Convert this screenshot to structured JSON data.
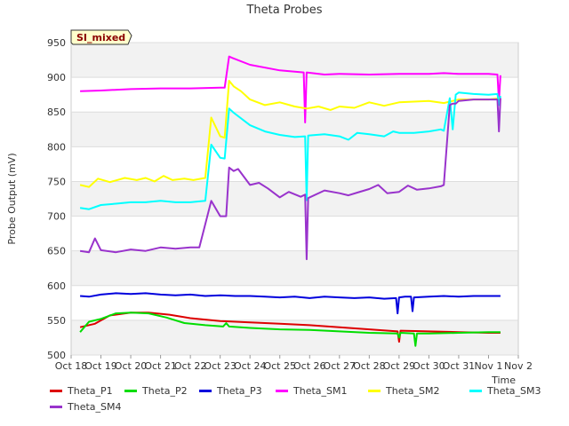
{
  "chart_data": {
    "type": "line",
    "title": "Theta Probes",
    "xlabel": "Time",
    "ylabel": "Probe Output (mV)",
    "badge": "SI_mixed",
    "ylim": [
      500,
      950
    ],
    "xlim": [
      0,
      15
    ],
    "y_ticks": [
      500,
      550,
      600,
      650,
      700,
      750,
      800,
      850,
      900,
      950
    ],
    "x_ticks": [
      {
        "v": 0,
        "label": "Oct 18"
      },
      {
        "v": 1,
        "label": "Oct 19"
      },
      {
        "v": 2,
        "label": "Oct 20"
      },
      {
        "v": 3,
        "label": "Oct 21"
      },
      {
        "v": 4,
        "label": "Oct 22"
      },
      {
        "v": 5,
        "label": "Oct 23"
      },
      {
        "v": 6,
        "label": "Oct 24"
      },
      {
        "v": 7,
        "label": "Oct 25"
      },
      {
        "v": 8,
        "label": "Oct 26"
      },
      {
        "v": 9,
        "label": "Oct 27"
      },
      {
        "v": 10,
        "label": "Oct 28"
      },
      {
        "v": 11,
        "label": "Oct 29"
      },
      {
        "v": 12,
        "label": "Oct 30"
      },
      {
        "v": 13,
        "label": "Oct 31"
      },
      {
        "v": 14,
        "label": "Nov 1"
      },
      {
        "v": 15,
        "label": "Nov 2"
      }
    ],
    "series": [
      {
        "name": "Theta_P1",
        "color": "#dd0000",
        "x": [
          0.3,
          0.8,
          1.3,
          2.0,
          2.6,
          3.3,
          4.0,
          5.0,
          6.0,
          7.0,
          8.0,
          9.0,
          10.0,
          10.95,
          11.0,
          11.05,
          12.0,
          13.0,
          14.0,
          14.4
        ],
        "y": [
          540,
          545,
          557,
          561,
          561,
          558,
          553,
          549,
          547,
          545,
          543,
          540,
          537,
          534,
          519,
          535,
          534,
          533,
          532,
          532
        ]
      },
      {
        "name": "Theta_P2",
        "color": "#00dd00",
        "x": [
          0.3,
          0.6,
          1.0,
          1.5,
          2.0,
          2.6,
          3.2,
          3.8,
          4.5,
          5.1,
          5.2,
          5.3,
          6.0,
          7.0,
          8.0,
          9.0,
          10.0,
          10.95,
          11.0,
          11.05,
          11.5,
          11.55,
          11.6,
          12.0,
          13.0,
          14.0,
          14.4
        ],
        "y": [
          533,
          548,
          552,
          560,
          561,
          560,
          554,
          546,
          543,
          541,
          546,
          541,
          539,
          537,
          536,
          534,
          532,
          531,
          525,
          532,
          531,
          513,
          531,
          531,
          532,
          533,
          533
        ]
      },
      {
        "name": "Theta_P3",
        "color": "#0000dd",
        "x": [
          0.3,
          0.6,
          1.0,
          1.5,
          2.0,
          2.5,
          3.0,
          3.5,
          4.0,
          4.5,
          5.0,
          5.5,
          6.0,
          6.5,
          7.0,
          7.5,
          8.0,
          8.5,
          9.0,
          9.5,
          10.0,
          10.5,
          10.9,
          10.95,
          11.0,
          11.2,
          11.4,
          11.45,
          11.5,
          12.0,
          12.5,
          13.0,
          13.5,
          14.0,
          14.4
        ],
        "y": [
          585,
          584,
          587,
          589,
          588,
          589,
          587,
          586,
          587,
          585,
          586,
          585,
          585,
          584,
          583,
          584,
          582,
          584,
          583,
          582,
          583,
          581,
          582,
          560,
          583,
          584,
          584,
          563,
          583,
          584,
          585,
          584,
          585,
          585,
          585
        ]
      },
      {
        "name": "Theta_SM1",
        "color": "#ff00ff",
        "x": [
          0.3,
          1.0,
          2.0,
          3.0,
          4.0,
          5.0,
          5.15,
          5.3,
          5.4,
          6.0,
          7.0,
          7.8,
          7.85,
          7.9,
          8.5,
          9.0,
          10.0,
          11.0,
          12.0,
          12.5,
          13.0,
          13.5,
          14.0,
          14.3,
          14.35,
          14.4
        ],
        "y": [
          880,
          881,
          883,
          884,
          884,
          885,
          885,
          930,
          928,
          918,
          910,
          907,
          835,
          907,
          904,
          905,
          904,
          905,
          905,
          906,
          905,
          905,
          905,
          904,
          865,
          903
        ]
      },
      {
        "name": "Theta_SM2",
        "color": "#ffff00",
        "x": [
          0.3,
          0.6,
          0.9,
          1.3,
          1.8,
          2.2,
          2.5,
          2.8,
          3.1,
          3.4,
          3.8,
          4.1,
          4.5,
          4.7,
          5.0,
          5.15,
          5.3,
          5.45,
          5.7,
          6.0,
          6.5,
          7.0,
          7.5,
          7.9,
          8.3,
          8.7,
          9.0,
          9.5,
          10.0,
          10.5,
          11.0,
          11.5,
          12.0,
          12.5,
          13.0,
          13.5,
          14.0,
          14.4
        ],
        "y": [
          745,
          742,
          754,
          749,
          755,
          752,
          755,
          750,
          758,
          752,
          754,
          752,
          755,
          842,
          815,
          813,
          895,
          887,
          880,
          868,
          860,
          864,
          858,
          855,
          858,
          853,
          858,
          856,
          864,
          859,
          864,
          865,
          866,
          863,
          868,
          868,
          868,
          870
        ]
      },
      {
        "name": "Theta_SM3",
        "color": "#00ffff",
        "x": [
          0.3,
          0.6,
          1.0,
          1.5,
          2.0,
          2.5,
          3.0,
          3.5,
          4.0,
          4.5,
          4.7,
          5.0,
          5.15,
          5.3,
          5.45,
          6.0,
          6.5,
          7.0,
          7.5,
          7.85,
          7.9,
          7.95,
          8.5,
          9.0,
          9.3,
          9.6,
          10.0,
          10.5,
          10.8,
          11.0,
          11.5,
          12.0,
          12.4,
          12.5,
          12.7,
          12.8,
          12.9,
          13.0,
          13.5,
          14.0,
          14.3,
          14.35,
          14.4
        ],
        "y": [
          712,
          710,
          716,
          718,
          720,
          720,
          722,
          720,
          720,
          722,
          803,
          784,
          783,
          855,
          849,
          831,
          822,
          817,
          814,
          815,
          723,
          816,
          818,
          815,
          810,
          820,
          818,
          815,
          822,
          820,
          820,
          822,
          825,
          823,
          870,
          825,
          875,
          878,
          876,
          875,
          876,
          860,
          873
        ]
      },
      {
        "name": "Theta_SM4",
        "color": "#9933cc",
        "x": [
          0.3,
          0.6,
          0.8,
          1.0,
          1.5,
          2.0,
          2.5,
          3.0,
          3.5,
          4.0,
          4.3,
          4.7,
          5.0,
          5.2,
          5.3,
          5.45,
          5.6,
          6.0,
          6.3,
          6.6,
          7.0,
          7.3,
          7.7,
          7.85,
          7.9,
          7.95,
          8.5,
          9.0,
          9.3,
          9.6,
          10.0,
          10.3,
          10.6,
          11.0,
          11.3,
          11.6,
          12.0,
          12.4,
          12.5,
          12.7,
          12.8,
          12.9,
          13.0,
          13.5,
          14.0,
          14.3,
          14.35,
          14.4
        ],
        "y": [
          650,
          648,
          668,
          651,
          648,
          652,
          650,
          655,
          653,
          655,
          655,
          722,
          700,
          700,
          770,
          765,
          768,
          745,
          748,
          740,
          727,
          735,
          728,
          731,
          638,
          726,
          737,
          733,
          730,
          734,
          739,
          745,
          733,
          735,
          744,
          738,
          740,
          743,
          745,
          860,
          862,
          862,
          866,
          868,
          868,
          868,
          822,
          870
        ]
      }
    ]
  }
}
